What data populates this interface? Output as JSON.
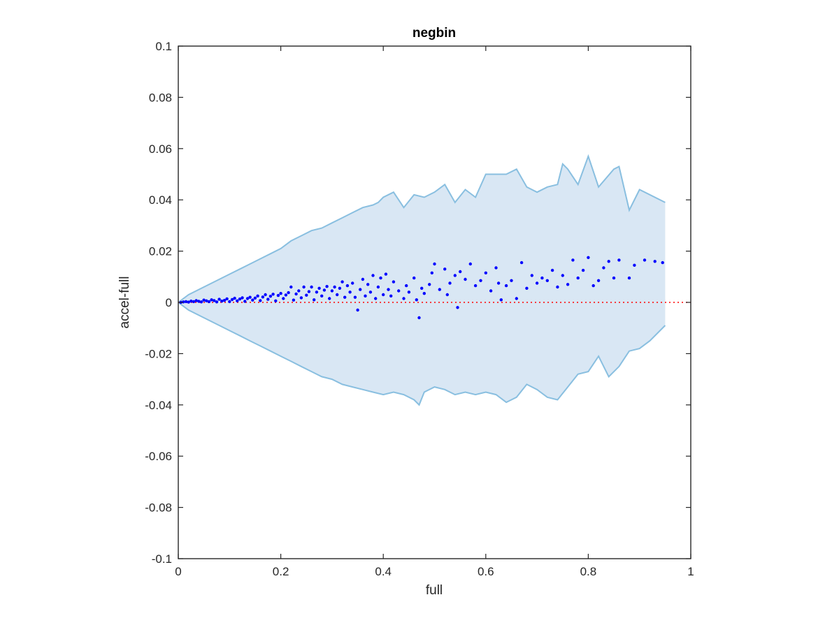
{
  "chart_data": {
    "type": "scatter",
    "title": "negbin",
    "xlabel": "full",
    "ylabel": "accel-full",
    "xlim": [
      0,
      1
    ],
    "ylim": [
      -0.1,
      0.1
    ],
    "x_ticks": [
      0,
      0.2,
      0.4,
      0.6,
      0.8,
      1
    ],
    "x_tick_labels": [
      "0",
      "0.2",
      "0.4",
      "0.6",
      "0.8",
      "1"
    ],
    "y_ticks": [
      -0.1,
      -0.08,
      -0.06,
      -0.04,
      -0.02,
      0,
      0.02,
      0.04,
      0.06,
      0.08,
      0.1
    ],
    "y_tick_labels": [
      "-0.1",
      "-0.08",
      "-0.06",
      "-0.04",
      "-0.02",
      "0",
      "0.02",
      "0.04",
      "0.06",
      "0.08",
      "0.1"
    ],
    "grid": false,
    "legend": "none",
    "reference_line": {
      "y": 0,
      "style": "dotted",
      "color": "#ff0000"
    },
    "band": {
      "color_fill": "#d9e7f4",
      "color_edge": "#89bfe0",
      "upper": [
        [
          0.0,
          0.0
        ],
        [
          0.02,
          0.003
        ],
        [
          0.05,
          0.006
        ],
        [
          0.08,
          0.009
        ],
        [
          0.1,
          0.011
        ],
        [
          0.12,
          0.013
        ],
        [
          0.14,
          0.015
        ],
        [
          0.16,
          0.017
        ],
        [
          0.18,
          0.019
        ],
        [
          0.2,
          0.021
        ],
        [
          0.22,
          0.024
        ],
        [
          0.24,
          0.026
        ],
        [
          0.26,
          0.028
        ],
        [
          0.28,
          0.029
        ],
        [
          0.3,
          0.031
        ],
        [
          0.32,
          0.033
        ],
        [
          0.34,
          0.035
        ],
        [
          0.36,
          0.037
        ],
        [
          0.38,
          0.038
        ],
        [
          0.39,
          0.039
        ],
        [
          0.4,
          0.041
        ],
        [
          0.42,
          0.043
        ],
        [
          0.44,
          0.037
        ],
        [
          0.46,
          0.042
        ],
        [
          0.48,
          0.041
        ],
        [
          0.5,
          0.043
        ],
        [
          0.52,
          0.046
        ],
        [
          0.54,
          0.039
        ],
        [
          0.56,
          0.044
        ],
        [
          0.58,
          0.041
        ],
        [
          0.6,
          0.05
        ],
        [
          0.62,
          0.05
        ],
        [
          0.64,
          0.05
        ],
        [
          0.66,
          0.052
        ],
        [
          0.68,
          0.045
        ],
        [
          0.7,
          0.043
        ],
        [
          0.72,
          0.045
        ],
        [
          0.74,
          0.046
        ],
        [
          0.75,
          0.054
        ],
        [
          0.76,
          0.052
        ],
        [
          0.78,
          0.046
        ],
        [
          0.8,
          0.057
        ],
        [
          0.82,
          0.045
        ],
        [
          0.85,
          0.052
        ],
        [
          0.86,
          0.053
        ],
        [
          0.88,
          0.036
        ],
        [
          0.9,
          0.044
        ],
        [
          0.95,
          0.039
        ]
      ],
      "lower": [
        [
          0.0,
          0.0
        ],
        [
          0.02,
          -0.003
        ],
        [
          0.05,
          -0.006
        ],
        [
          0.08,
          -0.009
        ],
        [
          0.1,
          -0.011
        ],
        [
          0.12,
          -0.013
        ],
        [
          0.14,
          -0.015
        ],
        [
          0.16,
          -0.017
        ],
        [
          0.18,
          -0.019
        ],
        [
          0.2,
          -0.021
        ],
        [
          0.22,
          -0.023
        ],
        [
          0.24,
          -0.025
        ],
        [
          0.26,
          -0.027
        ],
        [
          0.28,
          -0.029
        ],
        [
          0.3,
          -0.03
        ],
        [
          0.32,
          -0.032
        ],
        [
          0.34,
          -0.033
        ],
        [
          0.36,
          -0.034
        ],
        [
          0.38,
          -0.035
        ],
        [
          0.4,
          -0.036
        ],
        [
          0.42,
          -0.035
        ],
        [
          0.44,
          -0.036
        ],
        [
          0.46,
          -0.038
        ],
        [
          0.47,
          -0.04
        ],
        [
          0.48,
          -0.035
        ],
        [
          0.5,
          -0.033
        ],
        [
          0.52,
          -0.034
        ],
        [
          0.54,
          -0.036
        ],
        [
          0.56,
          -0.035
        ],
        [
          0.58,
          -0.036
        ],
        [
          0.6,
          -0.035
        ],
        [
          0.62,
          -0.036
        ],
        [
          0.64,
          -0.039
        ],
        [
          0.66,
          -0.037
        ],
        [
          0.68,
          -0.032
        ],
        [
          0.7,
          -0.034
        ],
        [
          0.72,
          -0.037
        ],
        [
          0.74,
          -0.038
        ],
        [
          0.76,
          -0.033
        ],
        [
          0.78,
          -0.028
        ],
        [
          0.8,
          -0.027
        ],
        [
          0.82,
          -0.021
        ],
        [
          0.84,
          -0.029
        ],
        [
          0.86,
          -0.025
        ],
        [
          0.88,
          -0.019
        ],
        [
          0.9,
          -0.018
        ],
        [
          0.92,
          -0.015
        ],
        [
          0.95,
          -0.009
        ]
      ]
    },
    "points": [
      [
        0.005,
        0.0
      ],
      [
        0.01,
        0.0002
      ],
      [
        0.015,
        0.0003
      ],
      [
        0.02,
        0.0001
      ],
      [
        0.025,
        0.0005
      ],
      [
        0.03,
        0.0003
      ],
      [
        0.035,
        0.0007
      ],
      [
        0.04,
        0.0004
      ],
      [
        0.045,
        0.0002
      ],
      [
        0.05,
        0.0009
      ],
      [
        0.055,
        0.0006
      ],
      [
        0.06,
        0.0003
      ],
      [
        0.065,
        0.001
      ],
      [
        0.07,
        0.0007
      ],
      [
        0.075,
        0.0002
      ],
      [
        0.08,
        0.0012
      ],
      [
        0.085,
        0.0005
      ],
      [
        0.09,
        0.0008
      ],
      [
        0.095,
        0.0014
      ],
      [
        0.1,
        0.0003
      ],
      [
        0.105,
        0.0011
      ],
      [
        0.11,
        0.0016
      ],
      [
        0.115,
        0.0006
      ],
      [
        0.12,
        0.0013
      ],
      [
        0.125,
        0.0018
      ],
      [
        0.13,
        0.0004
      ],
      [
        0.135,
        0.0015
      ],
      [
        0.14,
        0.002
      ],
      [
        0.145,
        0.0009
      ],
      [
        0.15,
        0.0017
      ],
      [
        0.155,
        0.0025
      ],
      [
        0.16,
        0.0007
      ],
      [
        0.165,
        0.0021
      ],
      [
        0.17,
        0.003
      ],
      [
        0.175,
        0.0012
      ],
      [
        0.18,
        0.0024
      ],
      [
        0.185,
        0.0032
      ],
      [
        0.19,
        0.0006
      ],
      [
        0.195,
        0.0027
      ],
      [
        0.2,
        0.0035
      ],
      [
        0.205,
        0.0015
      ],
      [
        0.21,
        0.0029
      ],
      [
        0.215,
        0.0038
      ],
      [
        0.22,
        0.006
      ],
      [
        0.225,
        0.0009
      ],
      [
        0.23,
        0.0033
      ],
      [
        0.235,
        0.0045
      ],
      [
        0.24,
        0.0018
      ],
      [
        0.245,
        0.006
      ],
      [
        0.25,
        0.0028
      ],
      [
        0.255,
        0.0042
      ],
      [
        0.26,
        0.006
      ],
      [
        0.265,
        0.001
      ],
      [
        0.27,
        0.004
      ],
      [
        0.275,
        0.0055
      ],
      [
        0.28,
        0.0025
      ],
      [
        0.285,
        0.0048
      ],
      [
        0.29,
        0.0062
      ],
      [
        0.295,
        0.0015
      ],
      [
        0.3,
        0.0045
      ],
      [
        0.305,
        0.006
      ],
      [
        0.31,
        0.003
      ],
      [
        0.315,
        0.0055
      ],
      [
        0.32,
        0.008
      ],
      [
        0.325,
        0.002
      ],
      [
        0.33,
        0.0065
      ],
      [
        0.335,
        0.004
      ],
      [
        0.34,
        0.0075
      ],
      [
        0.345,
        0.002
      ],
      [
        0.35,
        -0.003
      ],
      [
        0.355,
        0.005
      ],
      [
        0.36,
        0.009
      ],
      [
        0.365,
        0.0025
      ],
      [
        0.37,
        0.007
      ],
      [
        0.375,
        0.004
      ],
      [
        0.38,
        0.0105
      ],
      [
        0.385,
        0.0015
      ],
      [
        0.39,
        0.006
      ],
      [
        0.395,
        0.0095
      ],
      [
        0.4,
        0.003
      ],
      [
        0.405,
        0.011
      ],
      [
        0.41,
        0.005
      ],
      [
        0.415,
        0.0025
      ],
      [
        0.42,
        0.008
      ],
      [
        0.43,
        0.0045
      ],
      [
        0.44,
        0.0015
      ],
      [
        0.445,
        0.0065
      ],
      [
        0.45,
        0.004
      ],
      [
        0.46,
        0.0095
      ],
      [
        0.465,
        0.001
      ],
      [
        0.47,
        -0.006
      ],
      [
        0.475,
        0.0055
      ],
      [
        0.48,
        0.0035
      ],
      [
        0.49,
        0.007
      ],
      [
        0.495,
        0.0115
      ],
      [
        0.5,
        0.015
      ],
      [
        0.51,
        0.005
      ],
      [
        0.52,
        0.013
      ],
      [
        0.525,
        0.003
      ],
      [
        0.53,
        0.0075
      ],
      [
        0.54,
        0.0105
      ],
      [
        0.545,
        -0.002
      ],
      [
        0.55,
        0.012
      ],
      [
        0.56,
        0.009
      ],
      [
        0.57,
        0.015
      ],
      [
        0.58,
        0.0065
      ],
      [
        0.59,
        0.0085
      ],
      [
        0.6,
        0.0115
      ],
      [
        0.61,
        0.0045
      ],
      [
        0.62,
        0.0135
      ],
      [
        0.625,
        0.0075
      ],
      [
        0.63,
        0.001
      ],
      [
        0.64,
        0.0065
      ],
      [
        0.65,
        0.0085
      ],
      [
        0.66,
        0.0015
      ],
      [
        0.67,
        0.0155
      ],
      [
        0.68,
        0.0055
      ],
      [
        0.69,
        0.0105
      ],
      [
        0.7,
        0.0075
      ],
      [
        0.71,
        0.0095
      ],
      [
        0.72,
        0.0085
      ],
      [
        0.73,
        0.0125
      ],
      [
        0.74,
        0.006
      ],
      [
        0.75,
        0.0105
      ],
      [
        0.76,
        0.007
      ],
      [
        0.77,
        0.0165
      ],
      [
        0.78,
        0.0095
      ],
      [
        0.79,
        0.0125
      ],
      [
        0.8,
        0.0175
      ],
      [
        0.81,
        0.0065
      ],
      [
        0.82,
        0.0085
      ],
      [
        0.83,
        0.0135
      ],
      [
        0.84,
        0.016
      ],
      [
        0.85,
        0.0095
      ],
      [
        0.86,
        0.0165
      ],
      [
        0.88,
        0.0095
      ],
      [
        0.89,
        0.0145
      ],
      [
        0.91,
        0.0165
      ],
      [
        0.93,
        0.016
      ],
      [
        0.945,
        0.0155
      ]
    ]
  }
}
